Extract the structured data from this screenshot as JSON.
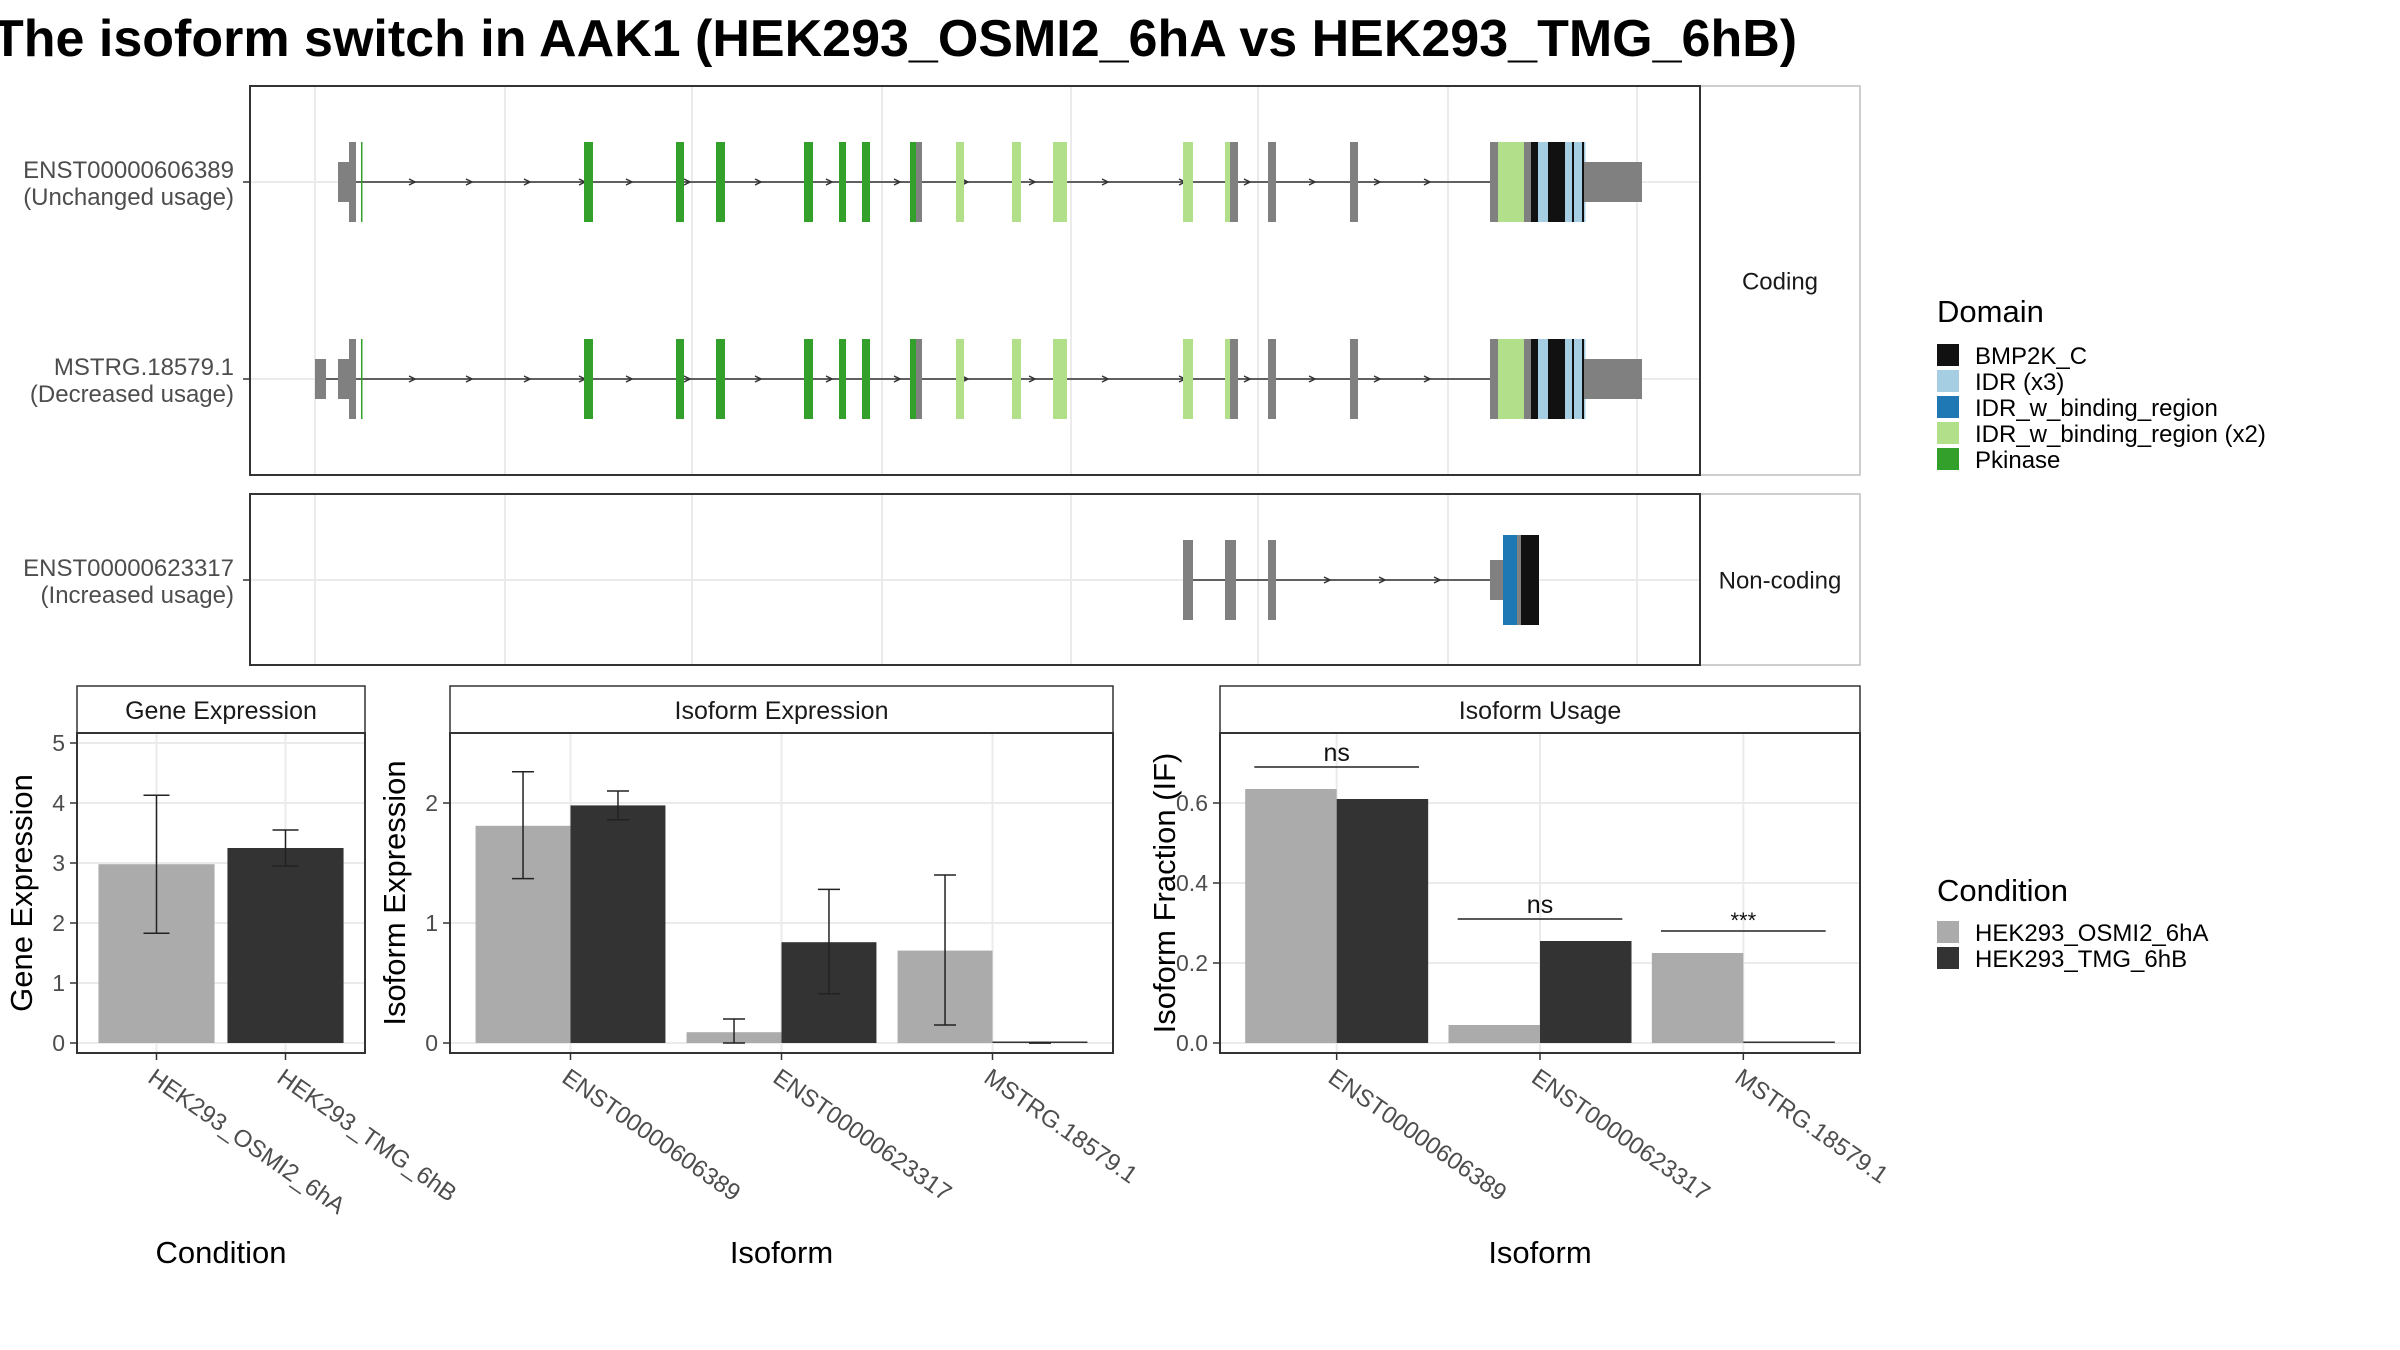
{
  "title": "The isoform switch in AAK1 (HEK293_OSMI2_6hA vs HEK293_TMG_6hB)",
  "colors": {
    "BMP2K_C": "#111111",
    "IDR": "#a6cee3",
    "IDR_w_binding_region": "#1f78b4",
    "IDR_w_binding_region_x2": "#b2df8a",
    "Pkinase": "#33a02c",
    "exon": "#808080",
    "cond_a": "#ababab",
    "cond_b": "#333333"
  },
  "structure": {
    "facets": [
      "Coding",
      "Non-coding"
    ],
    "transcripts": [
      {
        "id": "ENST00000606389",
        "usage": "(Unchanged usage)",
        "facet": "Coding"
      },
      {
        "id": "MSTRG.18579.1",
        "usage": "(Decreased usage)",
        "facet": "Coding"
      },
      {
        "id": "ENST00000623317",
        "usage": "(Increased usage)",
        "facet": "Non-coding"
      }
    ]
  },
  "legends": {
    "domain_title": "Domain",
    "domain_items": [
      {
        "label": "BMP2K_C",
        "key": "BMP2K_C"
      },
      {
        "label": "IDR (x3)",
        "key": "IDR"
      },
      {
        "label": "IDR_w_binding_region",
        "key": "IDR_w_binding_region"
      },
      {
        "label": "IDR_w_binding_region (x2)",
        "key": "IDR_w_binding_region_x2"
      },
      {
        "label": "Pkinase",
        "key": "Pkinase"
      }
    ],
    "condition_title": "Condition",
    "condition_items": [
      {
        "label": "HEK293_OSMI2_6hA",
        "key": "cond_a"
      },
      {
        "label": "HEK293_TMG_6hB",
        "key": "cond_b"
      }
    ]
  },
  "chart_data": [
    {
      "type": "bar",
      "title": "Gene Expression",
      "xlabel": "Condition",
      "ylabel": "Gene Expression",
      "ylim": [
        0,
        5
      ],
      "yticks": [
        0,
        1,
        2,
        3,
        4,
        5
      ],
      "categories": [
        "HEK293_OSMI2_6hA",
        "HEK293_TMG_6hB"
      ],
      "bars": [
        {
          "category": "HEK293_OSMI2_6hA",
          "condition": "HEK293_OSMI2_6hA",
          "value": 2.98,
          "err_low": 1.83,
          "err_high": 4.13
        },
        {
          "category": "HEK293_TMG_6hB",
          "condition": "HEK293_TMG_6hB",
          "value": 3.25,
          "err_low": 2.95,
          "err_high": 3.55
        }
      ]
    },
    {
      "type": "bar",
      "title": "Isoform Expression",
      "xlabel": "Isoform",
      "ylabel": "Isoform Expression",
      "ylim": [
        0,
        2.5
      ],
      "yticks": [
        0,
        1,
        2
      ],
      "categories": [
        "ENST00000606389",
        "ENST00000623317",
        "MSTRG.18579.1"
      ],
      "series": [
        {
          "name": "HEK293_OSMI2_6hA",
          "values": [
            1.81,
            0.09,
            0.77
          ],
          "err_low": [
            1.37,
            0.0,
            0.15
          ],
          "err_high": [
            2.26,
            0.2,
            1.4
          ]
        },
        {
          "name": "HEK293_TMG_6hB",
          "values": [
            1.98,
            0.84,
            0.0
          ],
          "err_low": [
            1.86,
            0.41,
            0.0
          ],
          "err_high": [
            2.1,
            1.28,
            0.0
          ]
        }
      ]
    },
    {
      "type": "bar",
      "title": "Isoform Usage",
      "xlabel": "Isoform",
      "ylabel": "Isoform Fraction (IF)",
      "ylim": [
        0,
        0.75
      ],
      "yticks": [
        0.0,
        0.2,
        0.4,
        0.6
      ],
      "categories": [
        "ENST00000606389",
        "ENST00000623317",
        "MSTRG.18579.1"
      ],
      "series": [
        {
          "name": "HEK293_OSMI2_6hA",
          "values": [
            0.635,
            0.045,
            0.225
          ]
        },
        {
          "name": "HEK293_TMG_6hB",
          "values": [
            0.61,
            0.255,
            0.0
          ]
        }
      ],
      "significance": [
        "ns",
        "ns",
        "***"
      ]
    }
  ]
}
